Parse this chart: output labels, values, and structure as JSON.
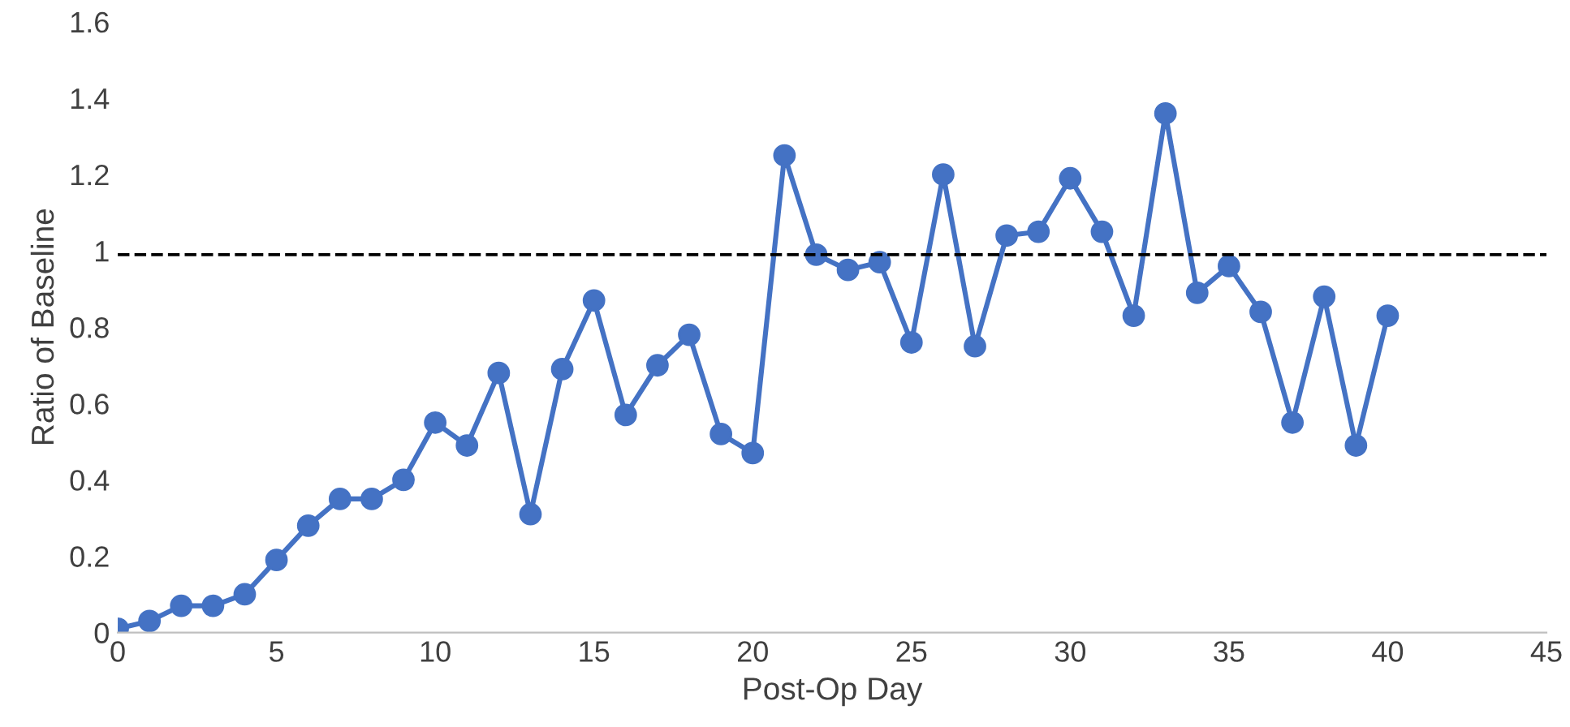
{
  "chart_data": {
    "type": "line",
    "xlabel": "Post-Op Day",
    "ylabel": "Ratio of Baseline",
    "x": [
      0,
      1,
      2,
      3,
      4,
      5,
      6,
      7,
      8,
      9,
      10,
      11,
      12,
      13,
      14,
      15,
      16,
      17,
      18,
      19,
      20,
      21,
      22,
      23,
      24,
      25,
      26,
      27,
      28,
      29,
      30,
      31,
      32,
      33,
      34,
      35,
      36,
      37,
      38,
      39,
      40
    ],
    "series": [
      {
        "color": "#4472c4",
        "values": [
          0.01,
          0.03,
          0.07,
          0.07,
          0.1,
          0.19,
          0.28,
          0.35,
          0.35,
          0.4,
          0.55,
          0.49,
          0.68,
          0.31,
          0.69,
          0.87,
          0.57,
          0.7,
          0.78,
          0.52,
          0.47,
          1.25,
          0.99,
          0.95,
          0.97,
          0.76,
          1.2,
          0.75,
          1.04,
          1.05,
          1.19,
          1.05,
          0.83,
          1.36,
          0.89,
          0.96,
          0.84,
          0.55,
          0.88,
          0.49,
          0.83
        ]
      }
    ],
    "xlim": [
      0,
      45
    ],
    "xticks": [
      0,
      5,
      10,
      15,
      20,
      25,
      30,
      35,
      40,
      45
    ],
    "ylim": [
      0,
      1.6
    ],
    "yticks": [
      0,
      0.2,
      0.4,
      0.6,
      0.8,
      1,
      1.2,
      1.4,
      1.6
    ],
    "ref_lines": [
      {
        "axis": "y",
        "value": 0.99,
        "color": "#000000",
        "line_style": "dashed"
      }
    ],
    "marker": "circle",
    "line_style": "solid",
    "grid": false,
    "legend": false
  }
}
